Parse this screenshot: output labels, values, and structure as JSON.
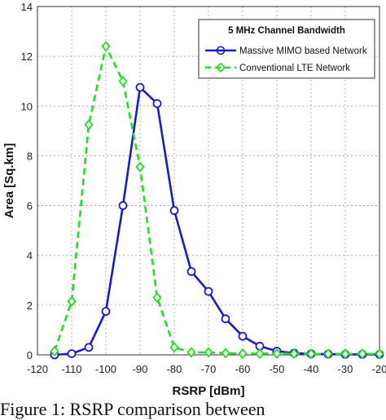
{
  "chart_data": {
    "type": "line",
    "title": "5 MHz Channel Bandwidth",
    "xlabel": "RSRP [dBm]",
    "ylabel": "Area [Sq.km]",
    "xlim": [
      -120,
      -20
    ],
    "ylim": [
      0,
      14
    ],
    "xticks": [
      -120,
      -110,
      -100,
      -90,
      -80,
      -70,
      -60,
      -50,
      -40,
      -30,
      -20
    ],
    "yticks": [
      0,
      2,
      4,
      6,
      8,
      10,
      12,
      14
    ],
    "grid": true,
    "legend_position": "top-right",
    "series": [
      {
        "name": "Massive MIMO based Network",
        "color": "#1a1acc",
        "line_style": "solid",
        "marker": "circle",
        "x": [
          -115,
          -110,
          -105,
          -100,
          -95,
          -90,
          -85,
          -80,
          -75,
          -70,
          -65,
          -60,
          -55,
          -50,
          -45,
          -40,
          -35,
          -30,
          -25,
          -20
        ],
        "y": [
          0.0,
          0.05,
          0.3,
          1.75,
          6.0,
          10.75,
          10.1,
          5.8,
          3.35,
          2.55,
          1.45,
          0.75,
          0.35,
          0.15,
          0.07,
          0.04,
          0.03,
          0.02,
          0.02,
          0.02
        ]
      },
      {
        "name": "Conventional LTE Network",
        "color": "#22dd22",
        "line_style": "dashed",
        "marker": "diamond",
        "x": [
          -115,
          -110,
          -105,
          -100,
          -95,
          -90,
          -85,
          -80,
          -75,
          -70,
          -65,
          -60,
          -55,
          -50,
          -45,
          -40,
          -35,
          -30,
          -25,
          -20
        ],
        "y": [
          0.15,
          2.15,
          9.25,
          12.4,
          11.0,
          7.55,
          2.3,
          0.3,
          0.1,
          0.1,
          0.07,
          0.05,
          0.05,
          0.05,
          0.05,
          0.04,
          0.04,
          0.04,
          0.04,
          0.04
        ]
      }
    ]
  },
  "caption": "Figure 1: RSRP comparison between"
}
